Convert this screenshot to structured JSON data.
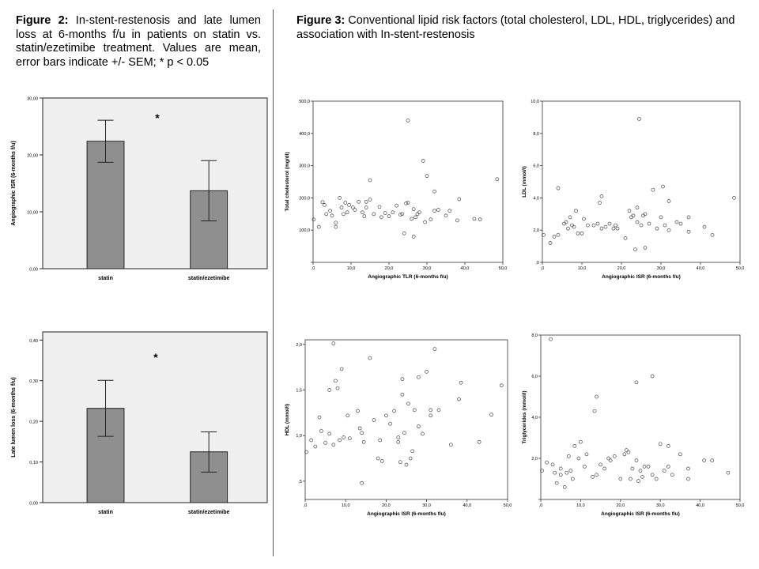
{
  "captions": {
    "fig2_label": "Figure 2:",
    "fig2_text": " In-stent-restenosis and late lumen loss at 6-months f/u in patients on statin vs. statin/ezetimibe treatment. Values are mean, error bars indicate +/- SEM; * p < 0.05",
    "fig3_label": "Figure 3:",
    "fig3_text": " Conventional lipid risk factors (total cholesterol, LDL, HDL, triglycerides) and association with In-stent-restenosis"
  },
  "chart_data": [
    {
      "id": "bar-isr",
      "type": "bar",
      "categories": [
        "statin",
        "statin/ezetimibe"
      ],
      "values": [
        22.4,
        13.7
      ],
      "errors": [
        [
          18.7,
          26.1
        ],
        [
          8.4,
          19.0
        ]
      ],
      "ylabel": "Angiographic ISR (6-months f/u)",
      "ylim": [
        0,
        30
      ],
      "yticks": [
        0,
        10,
        20,
        30
      ],
      "yticklabels": [
        "0,00",
        "10,00",
        "20,00",
        "30,00"
      ],
      "annotation": "*",
      "grid": false,
      "colors": {
        "bar": "#8f8f8f",
        "plot_bg": "#f0f0f0"
      }
    },
    {
      "id": "bar-lll",
      "type": "bar",
      "categories": [
        "statin",
        "statin/ezetimibe"
      ],
      "values": [
        0.232,
        0.125
      ],
      "errors": [
        [
          0.163,
          0.301
        ],
        [
          0.075,
          0.174
        ]
      ],
      "ylabel": "Late lumen loss (6-months f/u)",
      "ylim": [
        0,
        0.42
      ],
      "yticks": [
        0,
        0.1,
        0.2,
        0.3,
        0.4
      ],
      "yticklabels": [
        "0,00",
        "0,10",
        "0,20",
        "0,30",
        "0,40"
      ],
      "annotation": "*",
      "grid": false,
      "colors": {
        "bar": "#8f8f8f",
        "plot_bg": "#f0f0f0"
      }
    },
    {
      "id": "scatter-tc",
      "type": "scatter",
      "xlabel": "Angiographic TLR (6-months f/u)",
      "ylabel": "Total cholesterol (mg/dl)",
      "xlim": [
        0,
        50
      ],
      "ylim": [
        0,
        500
      ],
      "xticks": [
        0,
        10,
        20,
        30,
        40,
        50
      ],
      "xticklabels": [
        ",0",
        "10,0",
        "20,0",
        "30,0",
        "40,0",
        "50,0"
      ],
      "yticks": [
        0,
        100,
        200,
        300,
        400,
        500
      ],
      "yticklabels": [
        "",
        "100,0",
        "200,0",
        "300,0",
        "400,0",
        "500,0"
      ],
      "points": [
        [
          0.2,
          133
        ],
        [
          1.5,
          110
        ],
        [
          2.5,
          187
        ],
        [
          3,
          178
        ],
        [
          3.5,
          150
        ],
        [
          4.5,
          160
        ],
        [
          5,
          145
        ],
        [
          6,
          110
        ],
        [
          6,
          123
        ],
        [
          7,
          200
        ],
        [
          7.5,
          170
        ],
        [
          8,
          150
        ],
        [
          8.5,
          185
        ],
        [
          9,
          155
        ],
        [
          9.5,
          178
        ],
        [
          10.5,
          170
        ],
        [
          11,
          163
        ],
        [
          12,
          188
        ],
        [
          13,
          155
        ],
        [
          13.5,
          143
        ],
        [
          14,
          170
        ],
        [
          14,
          188
        ],
        [
          15,
          195
        ],
        [
          15,
          255
        ],
        [
          16,
          150
        ],
        [
          17.5,
          172
        ],
        [
          18,
          140
        ],
        [
          19,
          153
        ],
        [
          20,
          143
        ],
        [
          21,
          155
        ],
        [
          22,
          176
        ],
        [
          23,
          148
        ],
        [
          23.5,
          150
        ],
        [
          24,
          90
        ],
        [
          24.5,
          183
        ],
        [
          25,
          185
        ],
        [
          25,
          440
        ],
        [
          26,
          135
        ],
        [
          26.5,
          165
        ],
        [
          26.5,
          80
        ],
        [
          27,
          140
        ],
        [
          27.5,
          150
        ],
        [
          28,
          155
        ],
        [
          29,
          315
        ],
        [
          29.5,
          125
        ],
        [
          30,
          268
        ],
        [
          31,
          133
        ],
        [
          32,
          160
        ],
        [
          32,
          220
        ],
        [
          33,
          163
        ],
        [
          35,
          145
        ],
        [
          36,
          160
        ],
        [
          38,
          130
        ],
        [
          38.5,
          196
        ],
        [
          42.5,
          135
        ],
        [
          44,
          133
        ],
        [
          48.5,
          258
        ]
      ]
    },
    {
      "id": "scatter-ldl",
      "type": "scatter",
      "xlabel": "Angiographic ISR (6-months f/u)",
      "ylabel": "LDL (mmol/l)",
      "xlim": [
        0,
        50
      ],
      "ylim": [
        0,
        10
      ],
      "xticks": [
        0,
        10,
        20,
        30,
        40,
        50
      ],
      "xticklabels": [
        ",0",
        "10,0",
        "20,0",
        "30,0",
        "40,0",
        "50,0"
      ],
      "yticks": [
        0,
        2,
        4,
        6,
        8,
        10
      ],
      "yticklabels": [
        ",0",
        "2,0",
        "4,0",
        "6,0",
        "8,0",
        "10,0"
      ],
      "points": [
        [
          0.3,
          1.7
        ],
        [
          2,
          1.2
        ],
        [
          3,
          1.6
        ],
        [
          4,
          1.7
        ],
        [
          4,
          4.6
        ],
        [
          5.5,
          2.4
        ],
        [
          6,
          2.5
        ],
        [
          6.5,
          2.1
        ],
        [
          7,
          2.8
        ],
        [
          7.5,
          2.3
        ],
        [
          8,
          2.2
        ],
        [
          8.5,
          3.2
        ],
        [
          9,
          1.8
        ],
        [
          10,
          1.8
        ],
        [
          10.5,
          2.7
        ],
        [
          11.5,
          2.3
        ],
        [
          13,
          2.3
        ],
        [
          14,
          2.4
        ],
        [
          14.5,
          3.7
        ],
        [
          15,
          2.1
        ],
        [
          15,
          4.1
        ],
        [
          16,
          2.2
        ],
        [
          17,
          2.4
        ],
        [
          18,
          2.1
        ],
        [
          18.5,
          2.3
        ],
        [
          19,
          2.1
        ],
        [
          21,
          1.5
        ],
        [
          22,
          3.2
        ],
        [
          22.5,
          2.8
        ],
        [
          23,
          2.9
        ],
        [
          23.5,
          0.8
        ],
        [
          24,
          2.5
        ],
        [
          24,
          3.4
        ],
        [
          24.5,
          8.9
        ],
        [
          25,
          2.3
        ],
        [
          25.5,
          2.9
        ],
        [
          26,
          3.0
        ],
        [
          26,
          0.9
        ],
        [
          27,
          2.4
        ],
        [
          28,
          4.5
        ],
        [
          29,
          2.1
        ],
        [
          30,
          2.8
        ],
        [
          30.5,
          4.7
        ],
        [
          31,
          2.3
        ],
        [
          32,
          2.0
        ],
        [
          32,
          3.8
        ],
        [
          34,
          2.5
        ],
        [
          35,
          2.4
        ],
        [
          37,
          2.8
        ],
        [
          37,
          1.9
        ],
        [
          41,
          2.2
        ],
        [
          43,
          1.7
        ],
        [
          48.5,
          4.0
        ]
      ]
    },
    {
      "id": "scatter-hdl",
      "type": "scatter",
      "xlabel": "Angiographic ISR (6-months f/u)",
      "ylabel": "HDL (mmol/l)",
      "xlim": [
        0,
        50
      ],
      "ylim": [
        0.3,
        2.05
      ],
      "xticks": [
        0,
        10,
        20,
        30,
        40,
        50
      ],
      "xticklabels": [
        ",0",
        "10,0",
        "20,0",
        "30,0",
        "40,0",
        "50,0"
      ],
      "yticks": [
        0.5,
        1.0,
        1.5,
        2.0
      ],
      "yticklabels": [
        ",5",
        "1,0",
        "1,5",
        "2,0"
      ],
      "points": [
        [
          0.3,
          0.82
        ],
        [
          1.5,
          0.95
        ],
        [
          2.5,
          0.88
        ],
        [
          3.5,
          1.2
        ],
        [
          4,
          1.05
        ],
        [
          5,
          0.92
        ],
        [
          6,
          1.02
        ],
        [
          6,
          1.5
        ],
        [
          7,
          2.01
        ],
        [
          7,
          0.9
        ],
        [
          7.5,
          1.6
        ],
        [
          8,
          1.52
        ],
        [
          8.5,
          0.95
        ],
        [
          9,
          1.73
        ],
        [
          9.5,
          0.98
        ],
        [
          10.5,
          1.22
        ],
        [
          11,
          0.97
        ],
        [
          13,
          1.27
        ],
        [
          13.5,
          1.08
        ],
        [
          14,
          0.48
        ],
        [
          14,
          1.03
        ],
        [
          14.5,
          0.93
        ],
        [
          16,
          1.85
        ],
        [
          17,
          1.17
        ],
        [
          18,
          0.75
        ],
        [
          18.5,
          0.95
        ],
        [
          19,
          0.72
        ],
        [
          20,
          1.22
        ],
        [
          21,
          1.13
        ],
        [
          22,
          1.27
        ],
        [
          23,
          0.93
        ],
        [
          23,
          0.98
        ],
        [
          23.5,
          0.71
        ],
        [
          24,
          1.62
        ],
        [
          24,
          1.45
        ],
        [
          24.5,
          1.03
        ],
        [
          25,
          0.68
        ],
        [
          25.5,
          1.35
        ],
        [
          26,
          0.75
        ],
        [
          26.5,
          0.83
        ],
        [
          27,
          1.28
        ],
        [
          28,
          1.64
        ],
        [
          28,
          1.1
        ],
        [
          29,
          1.02
        ],
        [
          30,
          1.7
        ],
        [
          31,
          1.22
        ],
        [
          31,
          1.28
        ],
        [
          32,
          1.95
        ],
        [
          33,
          1.28
        ],
        [
          36,
          0.9
        ],
        [
          38,
          1.4
        ],
        [
          38.5,
          1.58
        ],
        [
          43,
          0.93
        ],
        [
          46,
          1.23
        ],
        [
          48.5,
          1.55
        ]
      ]
    },
    {
      "id": "scatter-tg",
      "type": "scatter",
      "xlabel": "Angiographic ISR (6-months f/u)",
      "ylabel": "Triglycerides (mmol/l)",
      "xlim": [
        0,
        50
      ],
      "ylim": [
        0,
        8
      ],
      "xticks": [
        0,
        10,
        20,
        30,
        40,
        50
      ],
      "xticklabels": [
        ",0",
        "10,0",
        "20,0",
        "30,0",
        "40,0",
        "50,0"
      ],
      "yticks": [
        0,
        2,
        4,
        6,
        8
      ],
      "yticklabels": [
        "",
        "2,0",
        "4,0",
        "6,0",
        "8,0"
      ],
      "points": [
        [
          0.3,
          1.4
        ],
        [
          1.5,
          1.8
        ],
        [
          2.5,
          7.8
        ],
        [
          3,
          1.7
        ],
        [
          3.5,
          1.3
        ],
        [
          4,
          0.8
        ],
        [
          5,
          1.2
        ],
        [
          5,
          1.5
        ],
        [
          6,
          0.6
        ],
        [
          6.5,
          1.3
        ],
        [
          7,
          2.1
        ],
        [
          7.5,
          1.4
        ],
        [
          8,
          1.0
        ],
        [
          8.5,
          2.6
        ],
        [
          9.5,
          2.0
        ],
        [
          10,
          2.8
        ],
        [
          11,
          1.6
        ],
        [
          11.5,
          2.2
        ],
        [
          13,
          1.1
        ],
        [
          13.5,
          4.3
        ],
        [
          14,
          5.0
        ],
        [
          14,
          1.2
        ],
        [
          15,
          1.7
        ],
        [
          16,
          1.5
        ],
        [
          17,
          2.0
        ],
        [
          17.5,
          1.9
        ],
        [
          18.5,
          2.1
        ],
        [
          20,
          1.0
        ],
        [
          21,
          2.2
        ],
        [
          21.5,
          2.4
        ],
        [
          22,
          2.3
        ],
        [
          22.5,
          1.0
        ],
        [
          23,
          1.5
        ],
        [
          24,
          1.9
        ],
        [
          24,
          5.7
        ],
        [
          24.5,
          0.9
        ],
        [
          25,
          1.4
        ],
        [
          25.5,
          1.1
        ],
        [
          26,
          1.6
        ],
        [
          27,
          1.6
        ],
        [
          28,
          1.2
        ],
        [
          28,
          6.0
        ],
        [
          29,
          1.0
        ],
        [
          30,
          2.7
        ],
        [
          31,
          1.4
        ],
        [
          32,
          1.6
        ],
        [
          32,
          2.6
        ],
        [
          33,
          1.2
        ],
        [
          35,
          2.2
        ],
        [
          37,
          1.5
        ],
        [
          37,
          1.0
        ],
        [
          41,
          1.9
        ],
        [
          43,
          1.9
        ],
        [
          47,
          1.3
        ]
      ]
    }
  ]
}
